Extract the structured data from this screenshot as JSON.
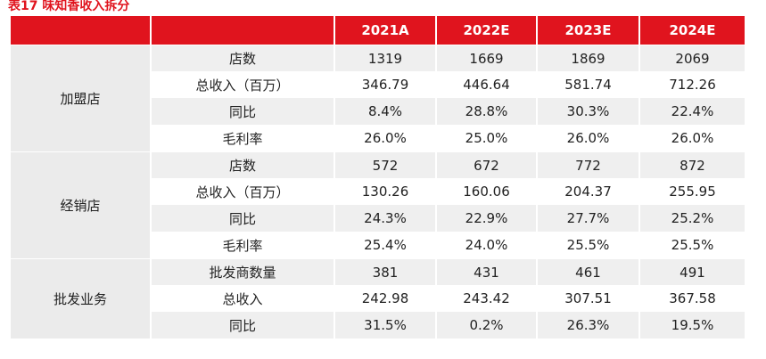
{
  "title": "表17  味知香收入拆分",
  "header": {
    "blank": "",
    "years": [
      "2021A",
      "2022E",
      "2023E",
      "2024E"
    ]
  },
  "groups": [
    {
      "name": "加盟店",
      "rows": [
        {
          "metric": "店数",
          "values": [
            "1319",
            "1669",
            "1869",
            "2069"
          ]
        },
        {
          "metric": "总收入（百万）",
          "values": [
            "346.79",
            "446.64",
            "581.74",
            "712.26"
          ]
        },
        {
          "metric": "同比",
          "values": [
            "8.4%",
            "28.8%",
            "30.3%",
            "22.4%"
          ]
        },
        {
          "metric": "毛利率",
          "values": [
            "26.0%",
            "25.0%",
            "26.0%",
            "26.0%"
          ]
        }
      ]
    },
    {
      "name": "经销店",
      "rows": [
        {
          "metric": "店数",
          "values": [
            "572",
            "672",
            "772",
            "872"
          ]
        },
        {
          "metric": "总收入（百万）",
          "values": [
            "130.26",
            "160.06",
            "204.37",
            "255.95"
          ]
        },
        {
          "metric": "同比",
          "values": [
            "24.3%",
            "22.9%",
            "27.7%",
            "25.2%"
          ]
        },
        {
          "metric": "毛利率",
          "values": [
            "25.4%",
            "24.0%",
            "25.5%",
            "25.5%"
          ]
        }
      ]
    },
    {
      "name": "批发业务",
      "rows": [
        {
          "metric": "批发商数量",
          "values": [
            "381",
            "431",
            "461",
            "491"
          ]
        },
        {
          "metric": "总收入",
          "values": [
            "242.98",
            "243.42",
            "307.51",
            "367.58"
          ]
        },
        {
          "metric": "同比",
          "values": [
            "31.5%",
            "0.2%",
            "26.3%",
            "19.5%"
          ]
        }
      ]
    }
  ],
  "colors": {
    "header_bg": "#e0141e",
    "title_text": "#e0141e",
    "stripe": "#efefef"
  }
}
